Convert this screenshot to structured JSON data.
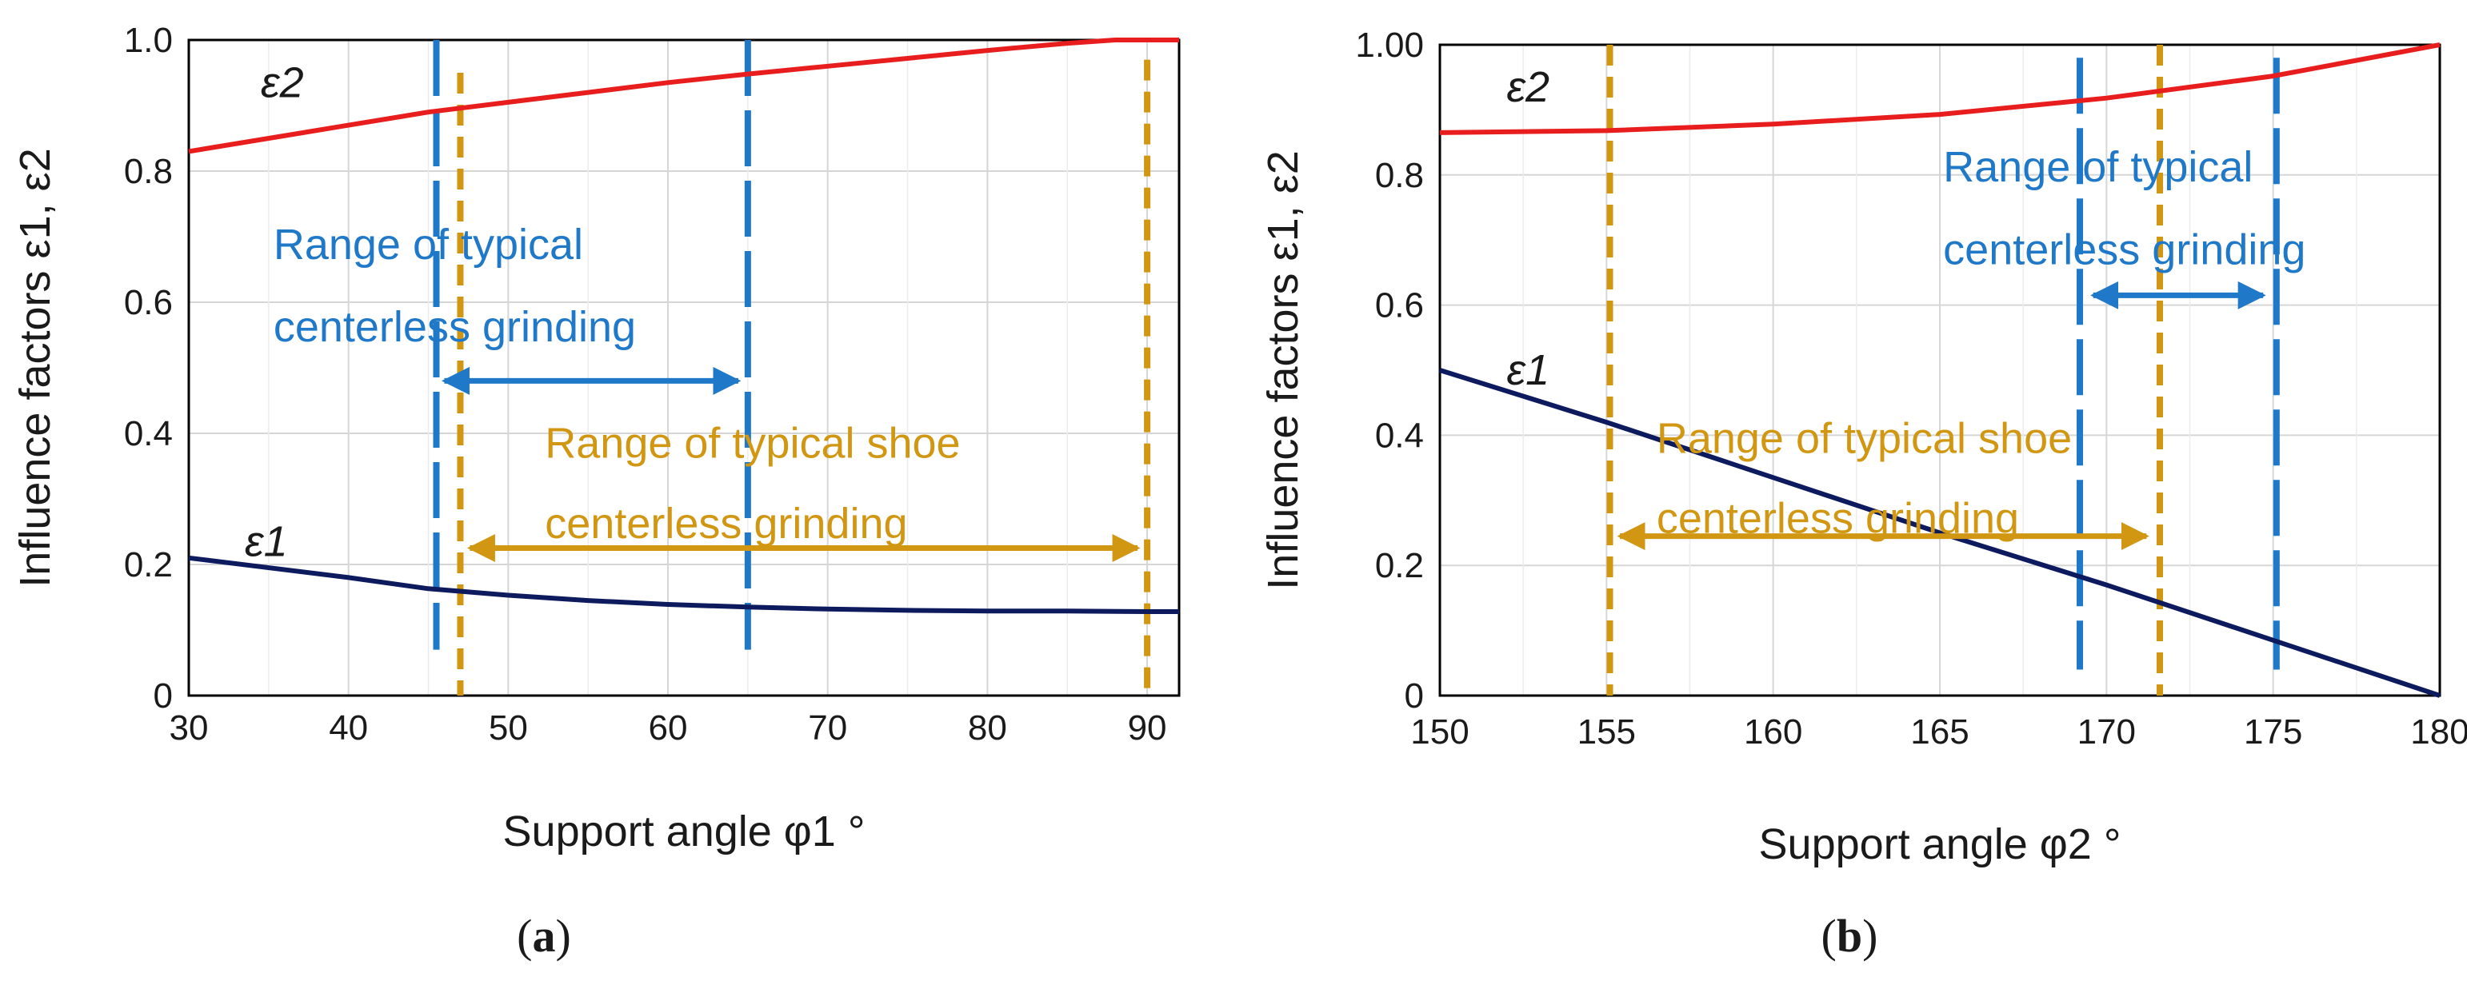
{
  "colors": {
    "eps1": "#0d1b5e",
    "eps2": "#e81e1e",
    "blue": "#1f78c8",
    "gold": "#d19712",
    "grid": "#d6d6d6",
    "axis": "#000000",
    "text": "#1a1a1a"
  },
  "chart_data": [
    {
      "type": "line",
      "panel_label": "(a)",
      "panel_letter": "a",
      "ylabel": "Influence factors ε1, ε2",
      "xlabel": "Support angle φ1 °",
      "xlim": [
        30,
        92
      ],
      "ylim": [
        0,
        1.0
      ],
      "xticks": [
        30,
        40,
        50,
        60,
        70,
        80,
        90
      ],
      "xtick_labels": [
        "30",
        "40",
        "50",
        "60",
        "70",
        "80",
        "90"
      ],
      "yticks": [
        0,
        0.2,
        0.4,
        0.6,
        0.8,
        1.0
      ],
      "ytick_labels": [
        "0",
        "0.2",
        "0.4",
        "0.6",
        "0.8",
        "1.0"
      ],
      "grid": true,
      "series": [
        {
          "name": "ε2",
          "color": "#e81e1e",
          "x": [
            30,
            40,
            45,
            50,
            55,
            60,
            65,
            70,
            75,
            80,
            85,
            88,
            92
          ],
          "y": [
            0.83,
            0.87,
            0.89,
            0.905,
            0.92,
            0.935,
            0.948,
            0.96,
            0.972,
            0.984,
            0.995,
            1.0,
            1.0
          ]
        },
        {
          "name": "ε1",
          "color": "#0d1b5e",
          "x": [
            30,
            40,
            45,
            50,
            55,
            60,
            65,
            70,
            75,
            80,
            85,
            90,
            92
          ],
          "y": [
            0.21,
            0.18,
            0.163,
            0.153,
            0.145,
            0.139,
            0.135,
            0.132,
            0.13,
            0.129,
            0.129,
            0.128,
            0.128
          ]
        }
      ],
      "curve_labels": [
        {
          "text": "ε2",
          "x": 34.5,
          "y": 0.935
        },
        {
          "text": "ε1",
          "x": 33.5,
          "y": 0.235
        }
      ],
      "vlines": [
        {
          "x": 45.5,
          "color": "#1f78c8",
          "style": "long-dash",
          "y": [
            0.07,
            1.0
          ]
        },
        {
          "x": 65,
          "color": "#1f78c8",
          "style": "long-dash",
          "y": [
            0.07,
            1.0
          ]
        },
        {
          "x": 47,
          "color": "#d19712",
          "style": "dash",
          "y": [
            0,
            0.95
          ]
        },
        {
          "x": 90,
          "color": "#d19712",
          "style": "dash",
          "y": [
            0,
            0.97
          ]
        }
      ],
      "ranges": [
        {
          "color": "#1f78c8",
          "lines": [
            "Range of typical",
            "centerless grinding"
          ],
          "text_x": 35.3,
          "text_y": [
            0.688,
            0.562
          ],
          "arrow": [
            46,
            64.4
          ],
          "arrow_y": 0.48
        },
        {
          "color": "#d19712",
          "lines": [
            "Range of typical shoe",
            "centerless grinding"
          ],
          "text_x": 52.3,
          "text_y": [
            0.385,
            0.262
          ],
          "arrow": [
            47.6,
            89.4
          ],
          "arrow_y": 0.225
        }
      ]
    },
    {
      "type": "line",
      "panel_label": "(b)",
      "panel_letter": "b",
      "ylabel": "Influence factors ε1, ε2",
      "xlabel": "Support angle φ2 °",
      "xlim": [
        150,
        180
      ],
      "ylim": [
        0,
        1.0
      ],
      "xticks": [
        150,
        155,
        160,
        165,
        170,
        175,
        180
      ],
      "xtick_labels": [
        "150",
        "155",
        "160",
        "165",
        "170",
        "175",
        "180"
      ],
      "yticks": [
        0,
        0.2,
        0.4,
        0.6,
        0.8,
        1.0
      ],
      "ytick_labels": [
        "0",
        "0.2",
        "0.4",
        "0.6",
        "0.8",
        "1.00"
      ],
      "grid": true,
      "series": [
        {
          "name": "ε2",
          "color": "#e81e1e",
          "x": [
            150,
            155,
            160,
            165,
            170,
            175,
            180
          ],
          "y": [
            0.865,
            0.868,
            0.878,
            0.893,
            0.918,
            0.952,
            1.0
          ]
        },
        {
          "name": "ε1",
          "color": "#0d1b5e",
          "x": [
            150,
            155,
            160,
            165,
            170,
            175,
            180
          ],
          "y": [
            0.5,
            0.42,
            0.335,
            0.25,
            0.17,
            0.085,
            0.0
          ]
        }
      ],
      "curve_labels": [
        {
          "text": "ε2",
          "x": 152.0,
          "y": 0.935
        },
        {
          "text": "ε1",
          "x": 152.0,
          "y": 0.5
        }
      ],
      "vlines": [
        {
          "x": 169.2,
          "color": "#1f78c8",
          "style": "long-dash",
          "y": [
            0.04,
            0.98
          ]
        },
        {
          "x": 175.1,
          "color": "#1f78c8",
          "style": "long-dash",
          "y": [
            0.04,
            0.98
          ]
        },
        {
          "x": 155.1,
          "color": "#d19712",
          "style": "dash",
          "y": [
            0,
            1.0
          ]
        },
        {
          "x": 171.6,
          "color": "#d19712",
          "style": "dash",
          "y": [
            0,
            1.0
          ]
        }
      ],
      "ranges": [
        {
          "color": "#1f78c8",
          "lines": [
            "Range of typical",
            "centerless grinding"
          ],
          "text_x": 165.1,
          "text_y": [
            0.812,
            0.685
          ],
          "arrow": [
            169.6,
            174.7
          ],
          "arrow_y": 0.615
        },
        {
          "color": "#d19712",
          "lines": [
            "Range of typical shoe",
            "centerless grinding"
          ],
          "text_x": 156.5,
          "text_y": [
            0.395,
            0.272
          ],
          "arrow": [
            155.4,
            171.2
          ],
          "arrow_y": 0.245
        }
      ]
    }
  ]
}
